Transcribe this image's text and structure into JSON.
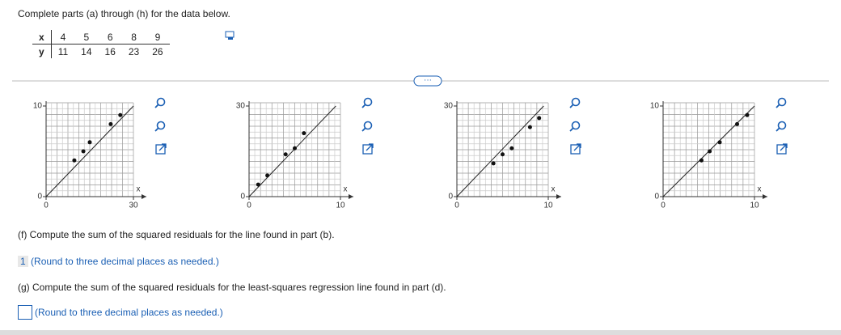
{
  "header": {
    "title": "Complete parts (a) through (h) for the data below."
  },
  "table": {
    "rows": [
      [
        "x",
        "4",
        "5",
        "6",
        "8",
        "9"
      ],
      [
        "y",
        "11",
        "14",
        "16",
        "23",
        "26"
      ]
    ]
  },
  "graphs": [
    {
      "xlim": [
        0,
        30
      ],
      "ylim": [
        0,
        10
      ],
      "xticks": [
        0,
        30
      ],
      "yticks": [
        0,
        10
      ],
      "xlabel": "x",
      "points": [
        [
          9.7,
          4
        ],
        [
          12.8,
          5
        ],
        [
          15,
          6
        ],
        [
          22.2,
          8
        ],
        [
          25.5,
          9
        ]
      ],
      "line": [
        [
          0,
          0
        ],
        [
          30,
          10
        ]
      ]
    },
    {
      "xlim": [
        0,
        10
      ],
      "ylim": [
        0,
        30
      ],
      "xticks": [
        0,
        10
      ],
      "yticks": [
        0,
        30
      ],
      "xlabel": "x",
      "points": [
        [
          1,
          4
        ],
        [
          2,
          7
        ],
        [
          4,
          14
        ],
        [
          5,
          16
        ],
        [
          6,
          21
        ]
      ],
      "line": [
        [
          0,
          0
        ],
        [
          9.5,
          30
        ]
      ]
    },
    {
      "xlim": [
        0,
        10
      ],
      "ylim": [
        0,
        30
      ],
      "xticks": [
        0,
        10
      ],
      "yticks": [
        0,
        30
      ],
      "xlabel": "x",
      "points": [
        [
          4,
          11
        ],
        [
          5,
          14
        ],
        [
          6,
          16
        ],
        [
          8,
          23
        ],
        [
          9,
          26
        ]
      ],
      "line": [
        [
          0,
          0
        ],
        [
          9.5,
          30
        ]
      ]
    },
    {
      "xlim": [
        0,
        10
      ],
      "ylim": [
        0,
        10
      ],
      "xticks": [
        0,
        10
      ],
      "yticks": [
        0,
        10
      ],
      "xlabel": "x",
      "points": [
        [
          4.2,
          4
        ],
        [
          5.1,
          5
        ],
        [
          6.2,
          6
        ],
        [
          8.1,
          8
        ],
        [
          9.2,
          9
        ]
      ],
      "line": [
        [
          0,
          0
        ],
        [
          10,
          10
        ]
      ]
    }
  ],
  "part_f": {
    "question": "(f) Compute the sum of the squared residuals for the line found in part (b).",
    "answer": "1",
    "hint": "(Round to three decimal places as needed.)"
  },
  "part_g": {
    "question": "(g) Compute the sum of the squared residuals for the least-squares regression line found in part (d).",
    "hint": "(Round to three decimal places as needed.)"
  }
}
